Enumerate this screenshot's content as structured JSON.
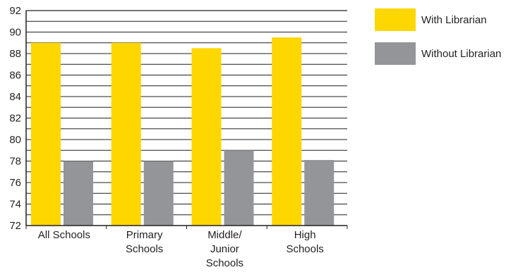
{
  "chart_data": {
    "type": "bar",
    "categories": [
      [
        "All Schools"
      ],
      [
        "Primary",
        "Schools"
      ],
      [
        "Middle/",
        "Junior",
        "Schools"
      ],
      [
        "High",
        "Schools"
      ]
    ],
    "series": [
      {
        "name": "With Librarian",
        "color": "#ffd700",
        "values": [
          89,
          89,
          88.5,
          89.5
        ]
      },
      {
        "name": "Without Librarian",
        "color": "#939598",
        "values": [
          78,
          78,
          79,
          78.1
        ]
      }
    ],
    "ylim": [
      72,
      92
    ],
    "yticks": [
      "72",
      "74",
      "76",
      "78",
      "80",
      "82",
      "84",
      "86",
      "88",
      "90",
      "92"
    ],
    "minor_step": 1,
    "grid": true,
    "legend": "right",
    "title": "",
    "xlabel": "",
    "ylabel": ""
  }
}
